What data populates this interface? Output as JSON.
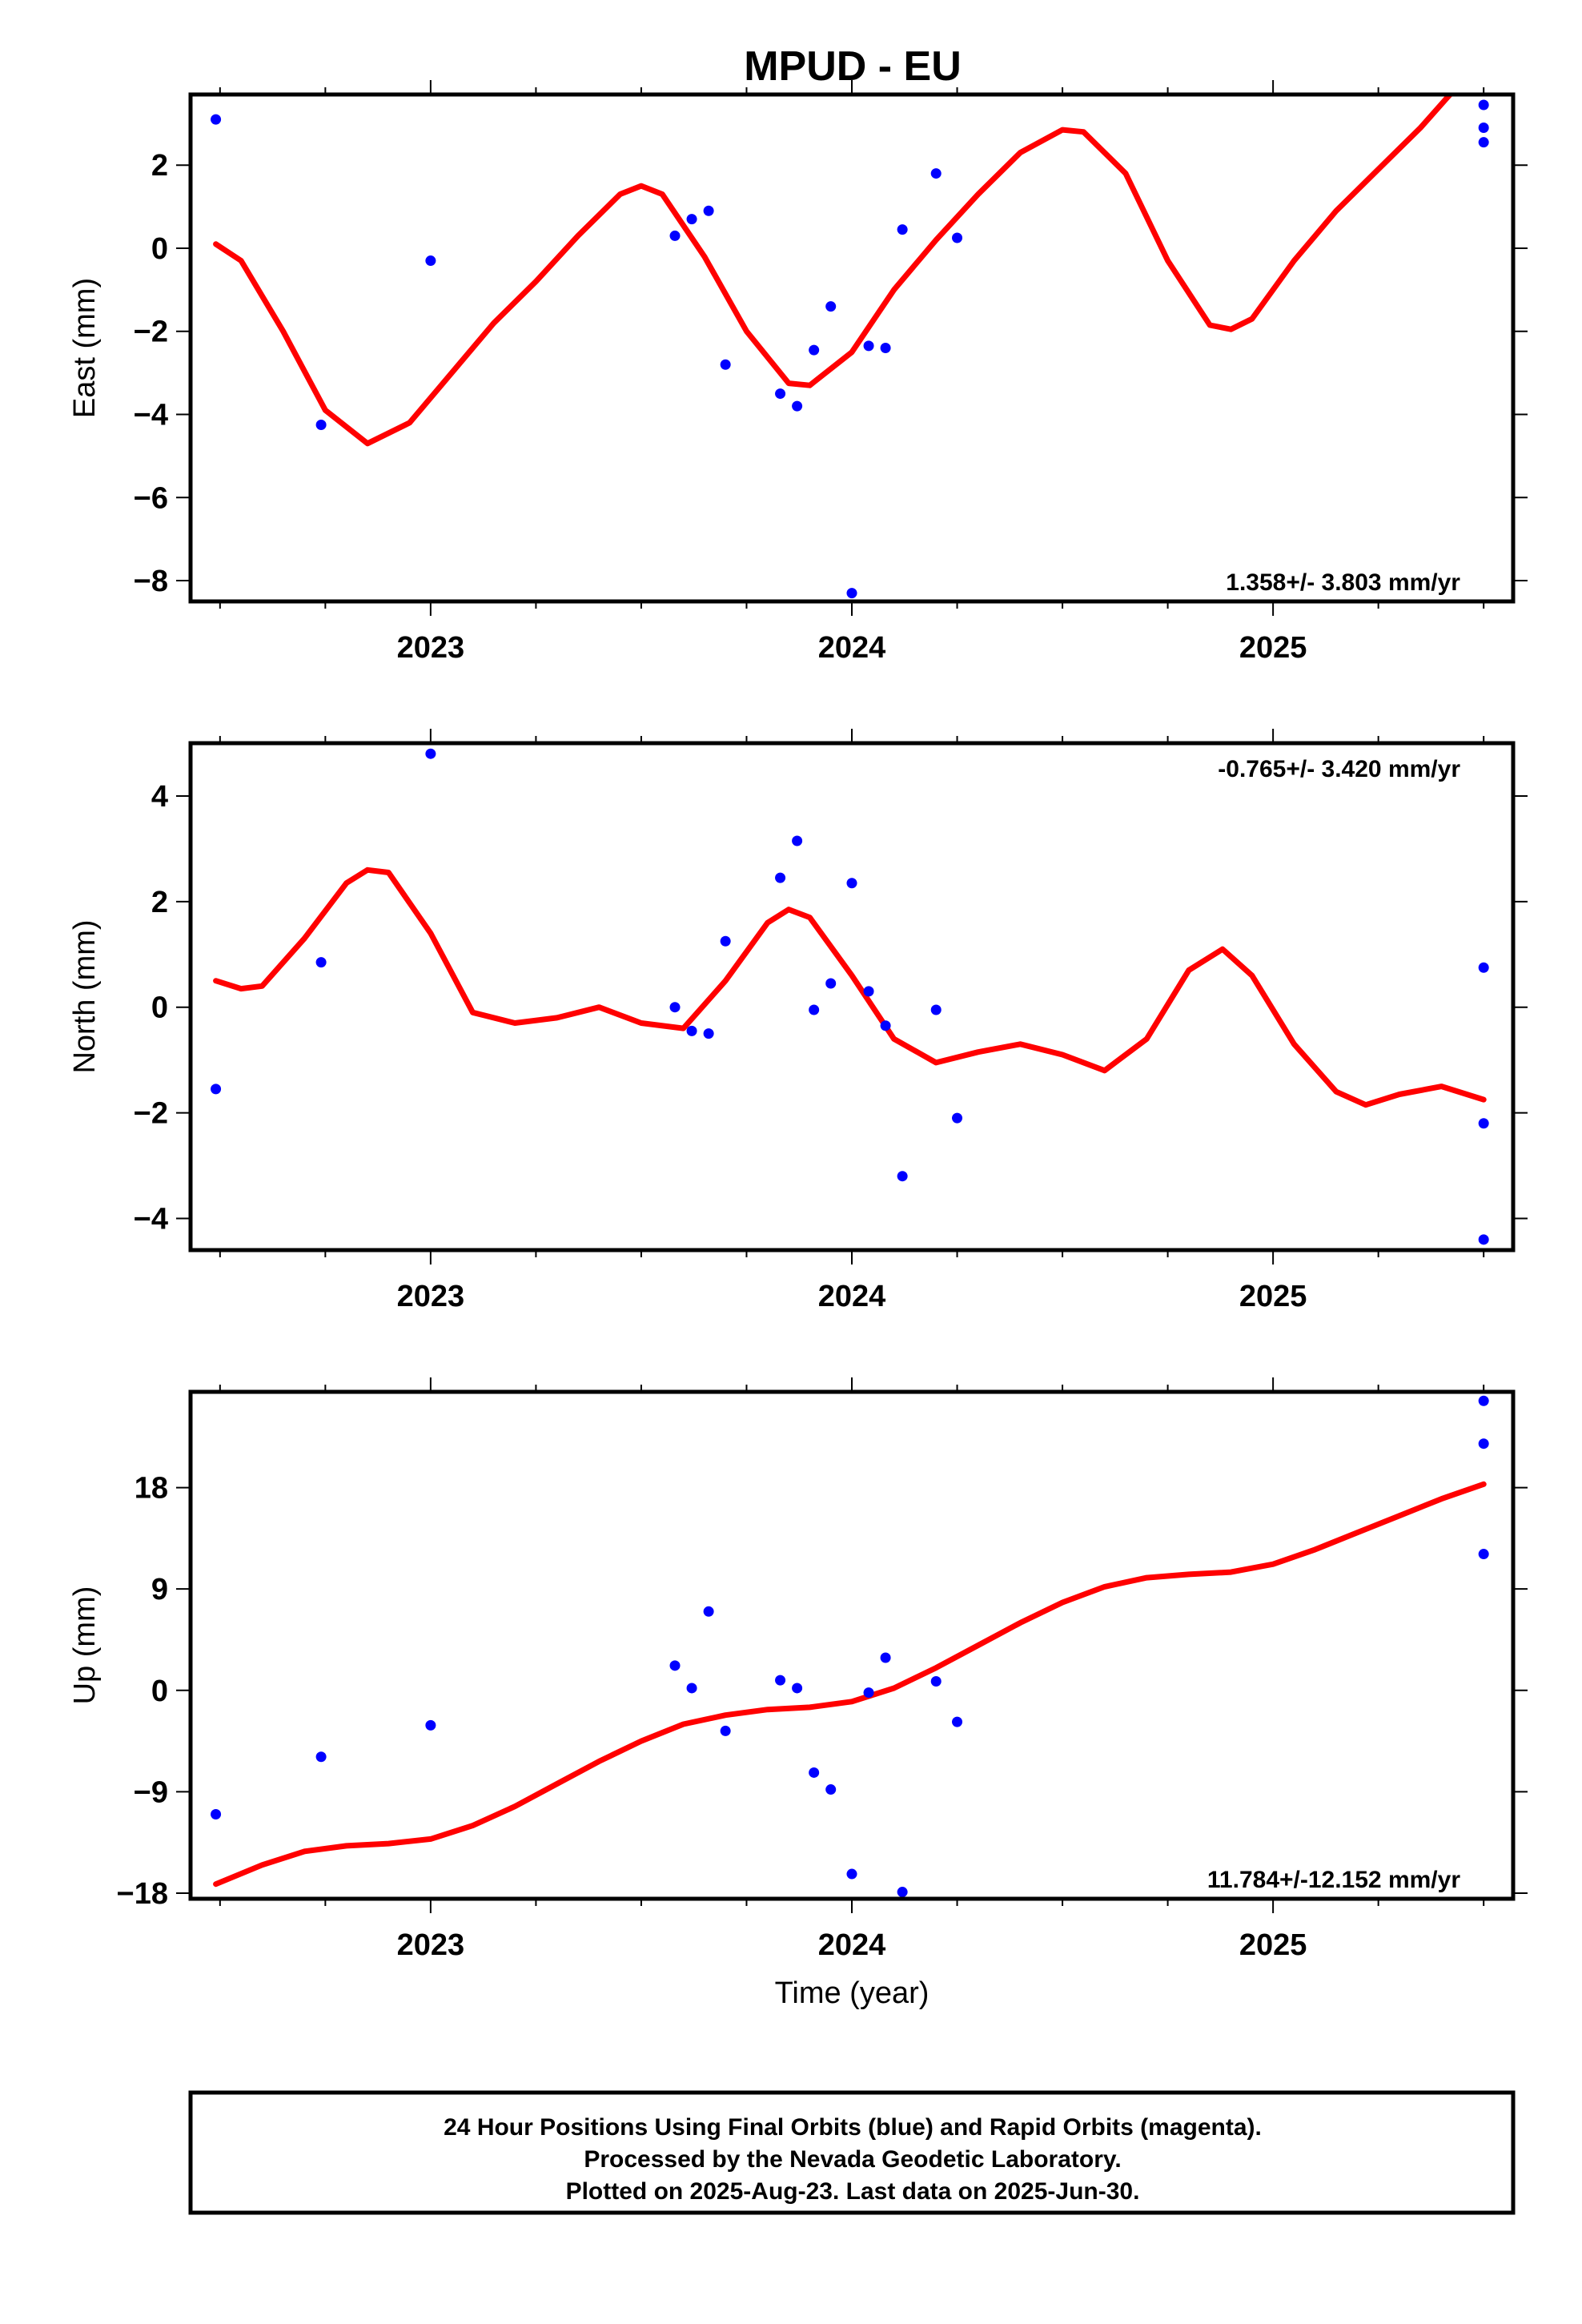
{
  "title": "MPUD - EU",
  "colors": {
    "fit": "#ff0000",
    "points": "#0000ff",
    "frame": "#000000"
  },
  "caption": {
    "line1": "24 Hour Positions Using Final Orbits (blue) and Rapid Orbits (magenta).",
    "line2": "Processed by the Nevada Geodetic Laboratory.",
    "line3": "Plotted on 2025-Aug-23. Last data on 2025-Jun-30."
  },
  "chart_data": [
    {
      "type": "scatter",
      "ylabel": "East (mm)",
      "xlabel": "",
      "rate": "1.358+/- 3.803 mm/yr",
      "rate_position": "bottom-right",
      "xlim": [
        2022.43,
        2025.57
      ],
      "ylim": [
        -8.5,
        3.7
      ],
      "xticks": [
        2023,
        2024,
        2025
      ],
      "xtick_labels": [
        "2023",
        "2024",
        "2025"
      ],
      "yticks": [
        2,
        0,
        -2,
        -4,
        -6,
        -8
      ],
      "ytick_labels": [
        "2",
        "0",
        "−2",
        "−4",
        "−6",
        "−8"
      ],
      "points": [
        [
          2022.49,
          3.1
        ],
        [
          2022.74,
          -4.25
        ],
        [
          2023.0,
          -0.3
        ],
        [
          2023.58,
          0.3
        ],
        [
          2023.62,
          0.7
        ],
        [
          2023.66,
          0.9
        ],
        [
          2023.7,
          -2.8
        ],
        [
          2023.83,
          -3.5
        ],
        [
          2023.87,
          -3.8
        ],
        [
          2023.91,
          -2.45
        ],
        [
          2023.95,
          -1.4
        ],
        [
          2024.0,
          -8.3
        ],
        [
          2024.04,
          -2.35
        ],
        [
          2024.08,
          -2.4
        ],
        [
          2024.12,
          0.45
        ],
        [
          2024.2,
          1.8
        ],
        [
          2024.25,
          0.25
        ],
        [
          2025.5,
          3.45
        ],
        [
          2025.5,
          2.9
        ],
        [
          2025.5,
          2.55
        ]
      ],
      "fit": [
        [
          2022.49,
          0.1
        ],
        [
          2022.55,
          -0.3
        ],
        [
          2022.65,
          -2.0
        ],
        [
          2022.75,
          -3.9
        ],
        [
          2022.85,
          -4.7
        ],
        [
          2022.95,
          -4.2
        ],
        [
          2023.05,
          -3.0
        ],
        [
          2023.15,
          -1.8
        ],
        [
          2023.25,
          -0.8
        ],
        [
          2023.35,
          0.3
        ],
        [
          2023.45,
          1.3
        ],
        [
          2023.5,
          1.5
        ],
        [
          2023.55,
          1.3
        ],
        [
          2023.65,
          -0.2
        ],
        [
          2023.75,
          -2.0
        ],
        [
          2023.85,
          -3.25
        ],
        [
          2023.9,
          -3.3
        ],
        [
          2024.0,
          -2.5
        ],
        [
          2024.1,
          -1.0
        ],
        [
          2024.2,
          0.2
        ],
        [
          2024.3,
          1.3
        ],
        [
          2024.4,
          2.3
        ],
        [
          2024.5,
          2.85
        ],
        [
          2024.55,
          2.8
        ],
        [
          2024.65,
          1.8
        ],
        [
          2024.75,
          -0.3
        ],
        [
          2024.85,
          -1.85
        ],
        [
          2024.9,
          -1.95
        ],
        [
          2024.95,
          -1.7
        ],
        [
          2025.05,
          -0.3
        ],
        [
          2025.15,
          0.9
        ],
        [
          2025.25,
          1.9
        ],
        [
          2025.35,
          2.9
        ],
        [
          2025.42,
          3.7
        ]
      ]
    },
    {
      "type": "scatter",
      "ylabel": "North (mm)",
      "xlabel": "",
      "rate": "-0.765+/- 3.420 mm/yr",
      "rate_position": "top-right",
      "xlim": [
        2022.43,
        2025.57
      ],
      "ylim": [
        -4.6,
        5.0
      ],
      "xticks": [
        2023,
        2024,
        2025
      ],
      "xtick_labels": [
        "2023",
        "2024",
        "2025"
      ],
      "yticks": [
        4,
        2,
        0,
        -2,
        -4
      ],
      "ytick_labels": [
        "4",
        "2",
        "0",
        "−2",
        "−4"
      ],
      "points": [
        [
          2022.49,
          -1.55
        ],
        [
          2022.74,
          0.85
        ],
        [
          2023.0,
          4.8
        ],
        [
          2023.58,
          0.0
        ],
        [
          2023.62,
          -0.45
        ],
        [
          2023.66,
          -0.5
        ],
        [
          2023.7,
          1.25
        ],
        [
          2023.83,
          2.45
        ],
        [
          2023.87,
          3.15
        ],
        [
          2023.91,
          -0.05
        ],
        [
          2023.95,
          0.45
        ],
        [
          2024.0,
          2.35
        ],
        [
          2024.04,
          0.3
        ],
        [
          2024.08,
          -0.35
        ],
        [
          2024.12,
          -3.2
        ],
        [
          2024.2,
          -0.05
        ],
        [
          2024.25,
          -2.1
        ],
        [
          2025.5,
          0.75
        ],
        [
          2025.5,
          -2.2
        ],
        [
          2025.5,
          -4.4
        ]
      ],
      "fit": [
        [
          2022.49,
          0.5
        ],
        [
          2022.55,
          0.35
        ],
        [
          2022.6,
          0.4
        ],
        [
          2022.7,
          1.3
        ],
        [
          2022.8,
          2.35
        ],
        [
          2022.85,
          2.6
        ],
        [
          2022.9,
          2.55
        ],
        [
          2023.0,
          1.4
        ],
        [
          2023.1,
          -0.1
        ],
        [
          2023.2,
          -0.3
        ],
        [
          2023.3,
          -0.2
        ],
        [
          2023.4,
          0.0
        ],
        [
          2023.5,
          -0.3
        ],
        [
          2023.6,
          -0.4
        ],
        [
          2023.7,
          0.5
        ],
        [
          2023.8,
          1.6
        ],
        [
          2023.85,
          1.85
        ],
        [
          2023.9,
          1.7
        ],
        [
          2024.0,
          0.6
        ],
        [
          2024.1,
          -0.6
        ],
        [
          2024.2,
          -1.05
        ],
        [
          2024.3,
          -0.85
        ],
        [
          2024.4,
          -0.7
        ],
        [
          2024.5,
          -0.9
        ],
        [
          2024.6,
          -1.2
        ],
        [
          2024.7,
          -0.6
        ],
        [
          2024.8,
          0.7
        ],
        [
          2024.88,
          1.1
        ],
        [
          2024.95,
          0.6
        ],
        [
          2025.05,
          -0.7
        ],
        [
          2025.15,
          -1.6
        ],
        [
          2025.22,
          -1.85
        ],
        [
          2025.3,
          -1.65
        ],
        [
          2025.4,
          -1.5
        ],
        [
          2025.5,
          -1.75
        ]
      ]
    },
    {
      "type": "scatter",
      "ylabel": "Up (mm)",
      "xlabel": "Time (year)",
      "rate": "11.784+/-12.152 mm/yr",
      "rate_position": "bottom-right",
      "xlim": [
        2022.43,
        2025.57
      ],
      "ylim": [
        -18.5,
        26.5
      ],
      "xticks": [
        2023,
        2024,
        2025
      ],
      "xtick_labels": [
        "2023",
        "2024",
        "2025"
      ],
      "yticks": [
        18,
        9,
        0,
        -9,
        -18
      ],
      "ytick_labels": [
        "18",
        "9",
        "0",
        "−9",
        "−18"
      ],
      "points": [
        [
          2022.49,
          -11.0
        ],
        [
          2022.74,
          -5.9
        ],
        [
          2023.0,
          -3.1
        ],
        [
          2023.58,
          2.2
        ],
        [
          2023.62,
          0.2
        ],
        [
          2023.66,
          7.0
        ],
        [
          2023.7,
          -3.6
        ],
        [
          2023.83,
          0.9
        ],
        [
          2023.87,
          0.2
        ],
        [
          2023.91,
          -7.3
        ],
        [
          2023.95,
          -8.8
        ],
        [
          2024.0,
          -16.3
        ],
        [
          2024.04,
          -0.2
        ],
        [
          2024.08,
          2.9
        ],
        [
          2024.12,
          -17.9
        ],
        [
          2024.2,
          0.8
        ],
        [
          2024.25,
          -2.8
        ],
        [
          2025.5,
          25.7
        ],
        [
          2025.5,
          21.9
        ],
        [
          2025.5,
          12.1
        ]
      ],
      "fit": [
        [
          2022.49,
          -17.2
        ],
        [
          2022.6,
          -15.5
        ],
        [
          2022.7,
          -14.3
        ],
        [
          2022.8,
          -13.8
        ],
        [
          2022.9,
          -13.6
        ],
        [
          2023.0,
          -13.2
        ],
        [
          2023.1,
          -12.0
        ],
        [
          2023.2,
          -10.3
        ],
        [
          2023.3,
          -8.3
        ],
        [
          2023.4,
          -6.3
        ],
        [
          2023.5,
          -4.5
        ],
        [
          2023.6,
          -3.0
        ],
        [
          2023.7,
          -2.2
        ],
        [
          2023.8,
          -1.7
        ],
        [
          2023.9,
          -1.5
        ],
        [
          2024.0,
          -1.0
        ],
        [
          2024.1,
          0.2
        ],
        [
          2024.2,
          2.0
        ],
        [
          2024.3,
          4.0
        ],
        [
          2024.4,
          6.0
        ],
        [
          2024.5,
          7.8
        ],
        [
          2024.6,
          9.2
        ],
        [
          2024.7,
          10.0
        ],
        [
          2024.8,
          10.3
        ],
        [
          2024.9,
          10.5
        ],
        [
          2025.0,
          11.2
        ],
        [
          2025.1,
          12.5
        ],
        [
          2025.2,
          14.0
        ],
        [
          2025.3,
          15.5
        ],
        [
          2025.4,
          17.0
        ],
        [
          2025.5,
          18.3
        ]
      ]
    }
  ]
}
